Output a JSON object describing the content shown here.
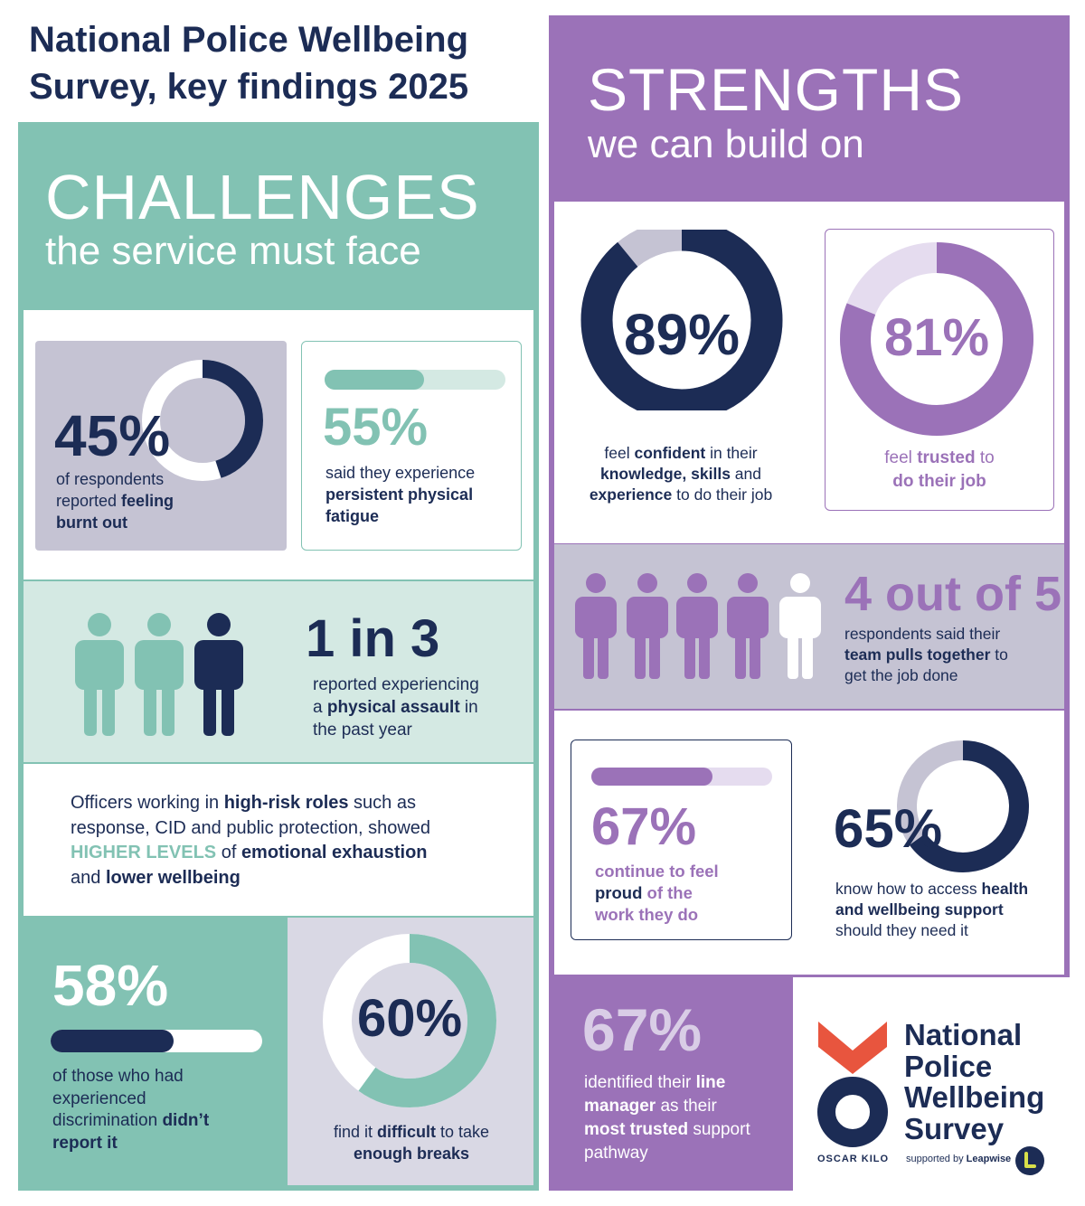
{
  "title": {
    "line1": "National Police Wellbeing",
    "line2": "Survey, key findings 2025"
  },
  "challenges": {
    "heading": "CHALLENGES",
    "subheading": "the service must face",
    "burnout": {
      "value": "45%",
      "fraction": 0.45,
      "text1": "of respondents",
      "text2": "reported ",
      "bold2": "feeling",
      "bold3": "burnt out"
    },
    "fatigue": {
      "value": "55%",
      "fraction": 0.55,
      "text1": "said they experience",
      "bold1": "persistent physical",
      "bold2": "fatigue"
    },
    "assault": {
      "value": "1 in 3",
      "text1": "reported experiencing",
      "text2a": "a ",
      "bold2": "physical assault",
      "text2b": " in",
      "text3": "the past year"
    },
    "highrisk": {
      "l1a": "Officers working in ",
      "l1b": "high-risk roles",
      "l1c": " such as",
      "l2": "response, CID and public protection, showed",
      "l3a": "HIGHER LEVELS",
      "l3b": " of ",
      "l3c": "emotional exhaustion",
      "l4a": "and ",
      "l4b": "lower wellbeing"
    },
    "discrimination": {
      "value": "58%",
      "fraction": 0.58,
      "text1": "of those who had",
      "text2": "experienced",
      "text3a": "discrimination ",
      "bold3": "didn’t",
      "bold4": "report it"
    },
    "breaks": {
      "value": "60%",
      "fraction": 0.6,
      "text1a": "find it ",
      "bold1": "difficult",
      "text1b": " to take",
      "bold2": "enough breaks"
    }
  },
  "strengths": {
    "heading": "STRENGTHS",
    "subheading": "we can build on",
    "confident": {
      "value": "89%",
      "fraction": 0.89,
      "l1a": "feel ",
      "l1b": "confident",
      "l1c": " in their",
      "l2a": "knowledge, skills",
      "l2b": " and",
      "l3a": "experience",
      "l3b": " to do their job"
    },
    "trusted": {
      "value": "81%",
      "fraction": 0.81,
      "l1a": "feel ",
      "l1b": "trusted",
      "l1c": " to",
      "l2": "do their job"
    },
    "team": {
      "value": "4 out of 5",
      "l1": "respondents said their",
      "l2a": "team pulls together",
      "l2b": " to",
      "l3": "get the job done"
    },
    "proud": {
      "value": "67%",
      "fraction": 0.67,
      "l1": "continue to feel",
      "l2a": "proud",
      "l2b": " of the",
      "l3": "work they do"
    },
    "support": {
      "value": "65%",
      "fraction": 0.65,
      "l1a": "know how to access ",
      "l1b": "health",
      "l2": "and wellbeing support",
      "l3": "should they need it"
    },
    "manager": {
      "value": "67%",
      "l1a": "identified their ",
      "l1b": "line",
      "l2a": "manager",
      "l2b": " as their",
      "l3a": "most trusted",
      "l3b": " support",
      "l4": "pathway"
    }
  },
  "logo": {
    "line1": "National",
    "line2": "Police",
    "line3": "Wellbeing",
    "line4": "Survey",
    "brand": "OSCAR KILO",
    "supported": "supported by ",
    "supported_brand": "Leapwise"
  },
  "colors": {
    "navy": "#1c2c55",
    "teal": "#82c2b3",
    "purple": "#9b72b8",
    "lilac": "#d9cde6",
    "grey": "#c5c3d3",
    "red": "#e8553e"
  }
}
